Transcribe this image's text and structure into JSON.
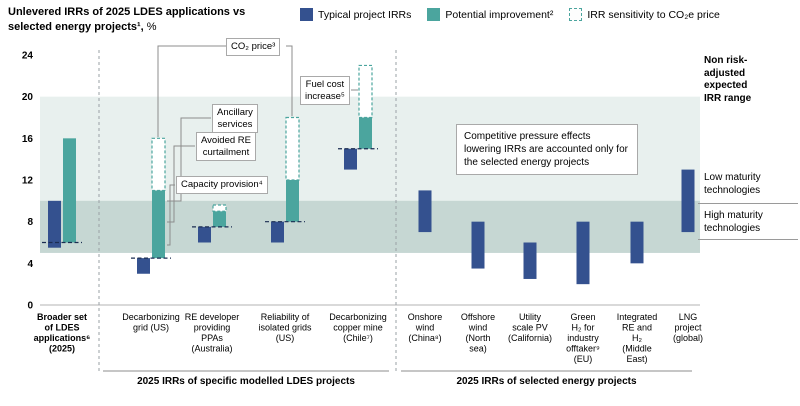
{
  "header": {
    "title_line1": "Unlevered IRRs of 2025 LDES applications vs",
    "title_line2_bold": "selected energy projects¹,",
    "title_line2_unit": " %"
  },
  "legend": {
    "typical": "Typical project IRRs",
    "improvement": "Potential improvement²",
    "sensitivity": "IRR sensitivity to CO₂e price"
  },
  "colors": {
    "typical_blue": "#34518F",
    "improvement_teal": "#4BA59E",
    "band_light": "#E8F0EE",
    "band_dark": "#C6D7D3",
    "sensitivity_stroke": "#4BA59E",
    "baseline_dash": "#1B2D52"
  },
  "annotations": {
    "co2_price": "CO₂ price³",
    "ancillary": [
      "Ancillary",
      "services"
    ],
    "avoided_re": [
      "Avoided RE",
      "curtailment"
    ],
    "capacity_provision": "Capacity provision⁴",
    "fuel_cost": [
      "Fuel cost",
      "increase⁵"
    ],
    "note": "Competitive pressure effects lowering IRRs are accounted only for the selected energy projects"
  },
  "right_labels": {
    "non_risk": [
      "Non risk-",
      "adjusted",
      "expected",
      "IRR range"
    ],
    "low_maturity": [
      "Low maturity",
      "technologies"
    ],
    "high_maturity": [
      "High maturity",
      "technologies"
    ]
  },
  "footer": {
    "group1": "2025 IRRs of specific modelled LDES projects",
    "group2": "2025 IRRs of selected energy projects"
  },
  "chart_data": {
    "type": "bar",
    "title": "Unlevered IRRs of 2025 LDES applications vs selected energy projects, %",
    "unit": "%",
    "ylim": [
      0,
      24
    ],
    "yticks": [
      0,
      4,
      8,
      12,
      16,
      20,
      24
    ],
    "legend_position": "top",
    "bands": [
      {
        "name": "low-maturity",
        "label": "Low maturity technologies — non risk-adjusted expected IRR range",
        "from": 5,
        "to": 20
      },
      {
        "name": "high-maturity",
        "label": "High maturity technologies — non risk-adjusted expected IRR range",
        "from": 5,
        "to": 10
      }
    ],
    "series_legend": [
      "Typical project IRRs",
      "Potential improvement²",
      "IRR sensitivity to CO₂e price"
    ],
    "categories": [
      {
        "label_lines": [
          "Broader set",
          "of LDES",
          "applications⁶",
          "(2025)"
        ],
        "bold": true,
        "group": null,
        "typical": [
          5.5,
          10
        ],
        "improvement": [
          6,
          16
        ],
        "co2_sensitivity": null,
        "baseline": 6
      },
      {
        "label_lines": [
          "Decarbonizing",
          "grid (US)"
        ],
        "bold": false,
        "group": "ldes",
        "typical": [
          3,
          4.5
        ],
        "improvement": [
          4.5,
          11
        ],
        "co2_sensitivity": [
          11,
          16
        ],
        "baseline": 4.5
      },
      {
        "label_lines": [
          "RE developer",
          "providing",
          "PPAs",
          "(Australia)"
        ],
        "bold": false,
        "group": "ldes",
        "typical": [
          6,
          7.5
        ],
        "improvement": [
          7.5,
          9
        ],
        "co2_sensitivity": [
          9,
          9.6
        ],
        "baseline": 7.5
      },
      {
        "label_lines": [
          "Reliability of",
          "isolated grids",
          "(US)"
        ],
        "bold": false,
        "group": "ldes",
        "typical": [
          6,
          8
        ],
        "improvement": [
          8,
          12
        ],
        "co2_sensitivity": [
          12,
          18
        ],
        "baseline": 8
      },
      {
        "label_lines": [
          "Decarbonizing",
          "copper mine",
          "(Chile⁷)"
        ],
        "bold": false,
        "group": "ldes",
        "typical": [
          13,
          15
        ],
        "improvement": [
          15,
          18
        ],
        "co2_sensitivity": [
          18,
          23
        ],
        "baseline": 15
      },
      {
        "label_lines": [
          "Onshore",
          "wind",
          "(China⁸)"
        ],
        "bold": false,
        "group": "energy",
        "typical": [
          7,
          11
        ]
      },
      {
        "label_lines": [
          "Offshore",
          "wind",
          "(North",
          "sea)"
        ],
        "bold": false,
        "group": "energy",
        "typical": [
          3.5,
          8
        ]
      },
      {
        "label_lines": [
          "Utility",
          "scale PV",
          "(California)"
        ],
        "bold": false,
        "group": "energy",
        "typical": [
          2.5,
          6
        ]
      },
      {
        "label_lines": [
          "Green",
          "H₂ for",
          "industry",
          "offtaker⁹",
          "(EU)"
        ],
        "bold": false,
        "group": "energy",
        "typical": [
          2,
          8
        ]
      },
      {
        "label_lines": [
          "Integrated",
          "RE and",
          "H₂",
          "(Middle",
          "East)"
        ],
        "bold": false,
        "group": "energy",
        "typical": [
          4,
          8
        ]
      },
      {
        "label_lines": [
          "LNG",
          "project",
          "(global)"
        ],
        "bold": false,
        "group": "energy",
        "typical": [
          7,
          13
        ]
      }
    ]
  }
}
